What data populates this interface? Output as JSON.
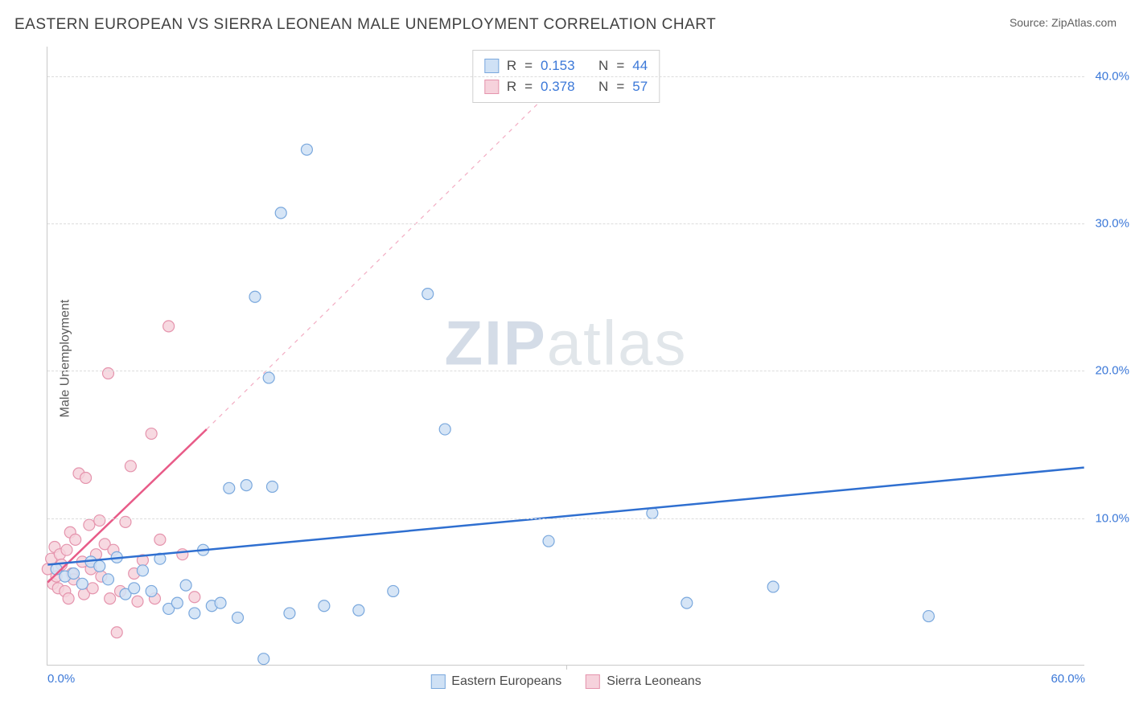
{
  "header": {
    "title": "EASTERN EUROPEAN VS SIERRA LEONEAN MALE UNEMPLOYMENT CORRELATION CHART",
    "source": "Source: ZipAtlas.com"
  },
  "chart": {
    "type": "scatter",
    "ylabel": "Male Unemployment",
    "background_color": "#ffffff",
    "grid_color": "#dcdcdc",
    "axis_color": "#c9c9c9",
    "tick_color": "#3b78d8",
    "label_color": "#5a5a5a",
    "title_color": "#414141",
    "xlim": [
      0,
      60
    ],
    "ylim": [
      0,
      42
    ],
    "xtick_positions": [
      0,
      30,
      60
    ],
    "xtick_labels": [
      "0.0%",
      "",
      "60.0%"
    ],
    "ytick_positions": [
      10,
      20,
      30,
      40
    ],
    "ytick_labels": [
      "10.0%",
      "20.0%",
      "30.0%",
      "40.0%"
    ],
    "marker_radius": 7,
    "marker_stroke_width": 1.2,
    "trend_line_width": 2.5,
    "series": [
      {
        "name": "Eastern Europeans",
        "fill": "#cfe1f5",
        "stroke": "#7aa8dd",
        "line_color": "#2f6fd0",
        "R": "0.153",
        "N": "44",
        "trend": {
          "x1": 0,
          "y1": 6.8,
          "x2": 60,
          "y2": 13.4,
          "dashed_from_x": 60
        },
        "points": [
          [
            0.5,
            6.5
          ],
          [
            1,
            6
          ],
          [
            1.5,
            6.2
          ],
          [
            2,
            5.5
          ],
          [
            2.5,
            7
          ],
          [
            3,
            6.7
          ],
          [
            3.5,
            5.8
          ],
          [
            4,
            7.3
          ],
          [
            4.5,
            4.8
          ],
          [
            5,
            5.2
          ],
          [
            5.5,
            6.4
          ],
          [
            6,
            5
          ],
          [
            6.5,
            7.2
          ],
          [
            7,
            3.8
          ],
          [
            7.5,
            4.2
          ],
          [
            8,
            5.4
          ],
          [
            8.5,
            3.5
          ],
          [
            9,
            7.8
          ],
          [
            9.5,
            4
          ],
          [
            10,
            4.2
          ],
          [
            10.5,
            12
          ],
          [
            11,
            3.2
          ],
          [
            11.5,
            12.2
          ],
          [
            12,
            25
          ],
          [
            12.5,
            0.4
          ],
          [
            13,
            12.1
          ],
          [
            12.8,
            19.5
          ],
          [
            13.5,
            30.7
          ],
          [
            14,
            3.5
          ],
          [
            15,
            35
          ],
          [
            16,
            4
          ],
          [
            18,
            3.7
          ],
          [
            20,
            5
          ],
          [
            22,
            25.2
          ],
          [
            23,
            16
          ],
          [
            29,
            8.4
          ],
          [
            35,
            10.3
          ],
          [
            37,
            4.2
          ],
          [
            42,
            5.3
          ],
          [
            51,
            3.3
          ]
        ]
      },
      {
        "name": "Sierra Leoneans",
        "fill": "#f6d2dc",
        "stroke": "#e594ad",
        "line_color": "#e85b88",
        "R": "0.378",
        "N": "57",
        "trend": {
          "x1": 0,
          "y1": 5.6,
          "x2": 9.2,
          "y2": 16,
          "dashed_from_x": 9.2,
          "dx2": 30,
          "dy2": 40
        },
        "points": [
          [
            0,
            6.5
          ],
          [
            0.2,
            7.2
          ],
          [
            0.3,
            5.5
          ],
          [
            0.4,
            8
          ],
          [
            0.5,
            6
          ],
          [
            0.6,
            5.2
          ],
          [
            0.7,
            7.5
          ],
          [
            0.8,
            6.8
          ],
          [
            1,
            5
          ],
          [
            1.1,
            7.8
          ],
          [
            1.2,
            4.5
          ],
          [
            1.3,
            9
          ],
          [
            1.4,
            6.2
          ],
          [
            1.5,
            5.8
          ],
          [
            1.6,
            8.5
          ],
          [
            1.8,
            13
          ],
          [
            2,
            7
          ],
          [
            2.1,
            4.8
          ],
          [
            2.2,
            12.7
          ],
          [
            2.4,
            9.5
          ],
          [
            2.5,
            6.5
          ],
          [
            2.6,
            5.2
          ],
          [
            2.8,
            7.5
          ],
          [
            3,
            9.8
          ],
          [
            3.1,
            6
          ],
          [
            3.3,
            8.2
          ],
          [
            3.5,
            19.8
          ],
          [
            3.6,
            4.5
          ],
          [
            3.8,
            7.8
          ],
          [
            4,
            2.2
          ],
          [
            4.2,
            5
          ],
          [
            4.5,
            9.7
          ],
          [
            4.8,
            13.5
          ],
          [
            5,
            6.2
          ],
          [
            5.2,
            4.3
          ],
          [
            5.5,
            7.1
          ],
          [
            6,
            15.7
          ],
          [
            6.2,
            4.5
          ],
          [
            6.5,
            8.5
          ],
          [
            7,
            23
          ],
          [
            7.8,
            7.5
          ],
          [
            8.5,
            4.6
          ]
        ]
      }
    ]
  },
  "correlation_box": {
    "r_label": "R",
    "eq": "=",
    "n_label": "N"
  },
  "watermark": {
    "zip": "ZIP",
    "atlas": "atlas"
  },
  "legend": {
    "items": [
      "Eastern Europeans",
      "Sierra Leoneans"
    ]
  }
}
